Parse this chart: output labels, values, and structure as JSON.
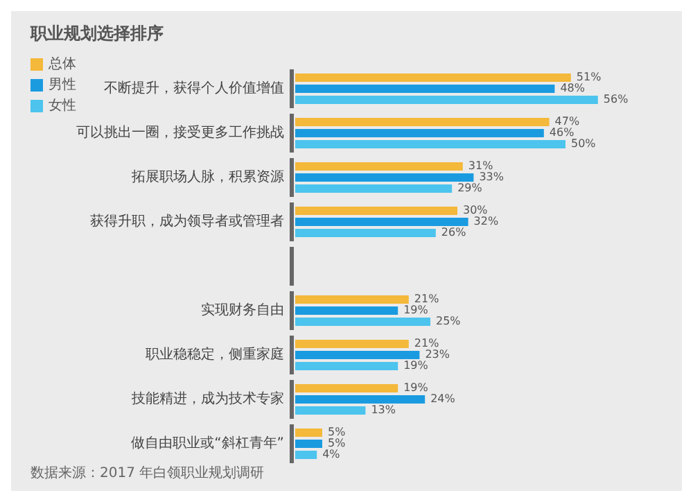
{
  "chart_data": {
    "type": "bar",
    "orientation": "horizontal",
    "title": "职业规划选择排序",
    "categories": [
      "不断提升，获得个人价值增值",
      "可以挑出一圈，接受更多工作挑战",
      "拓展职场人脉，积累资源",
      "获得升职，成为领导者或管理者",
      null,
      "实现财务自由",
      "职业稳稳定，侧重家庭",
      "技能精进，成为技术专家",
      "做自由职业或“斜杠青年”"
    ],
    "series": [
      {
        "name": "总体",
        "color": "#f4b83a",
        "values": [
          51,
          47,
          31,
          30,
          null,
          21,
          21,
          19,
          5
        ],
        "value_labels": [
          "51%",
          "47%",
          "31%",
          "30%",
          null,
          "21%",
          "21%",
          "19%",
          "5%"
        ]
      },
      {
        "name": "男性",
        "color": "#1a9be0",
        "values": [
          48,
          46,
          33,
          32,
          null,
          19,
          23,
          24,
          5
        ],
        "value_labels": [
          "48%",
          "46%",
          "33%",
          "32%",
          null,
          "19%",
          "23%",
          "24%",
          "5%"
        ]
      },
      {
        "name": "女性",
        "color": "#4cc4ee",
        "values": [
          56,
          50,
          29,
          26,
          null,
          25,
          19,
          13,
          4
        ],
        "value_labels": [
          "56%",
          "50%",
          "29%",
          "26%",
          null,
          "25%",
          "19%",
          "13%",
          "4%"
        ]
      }
    ],
    "legend": "top left",
    "annotations": [
      "数据来源：2017 年白领职业规划调研"
    ]
  }
}
